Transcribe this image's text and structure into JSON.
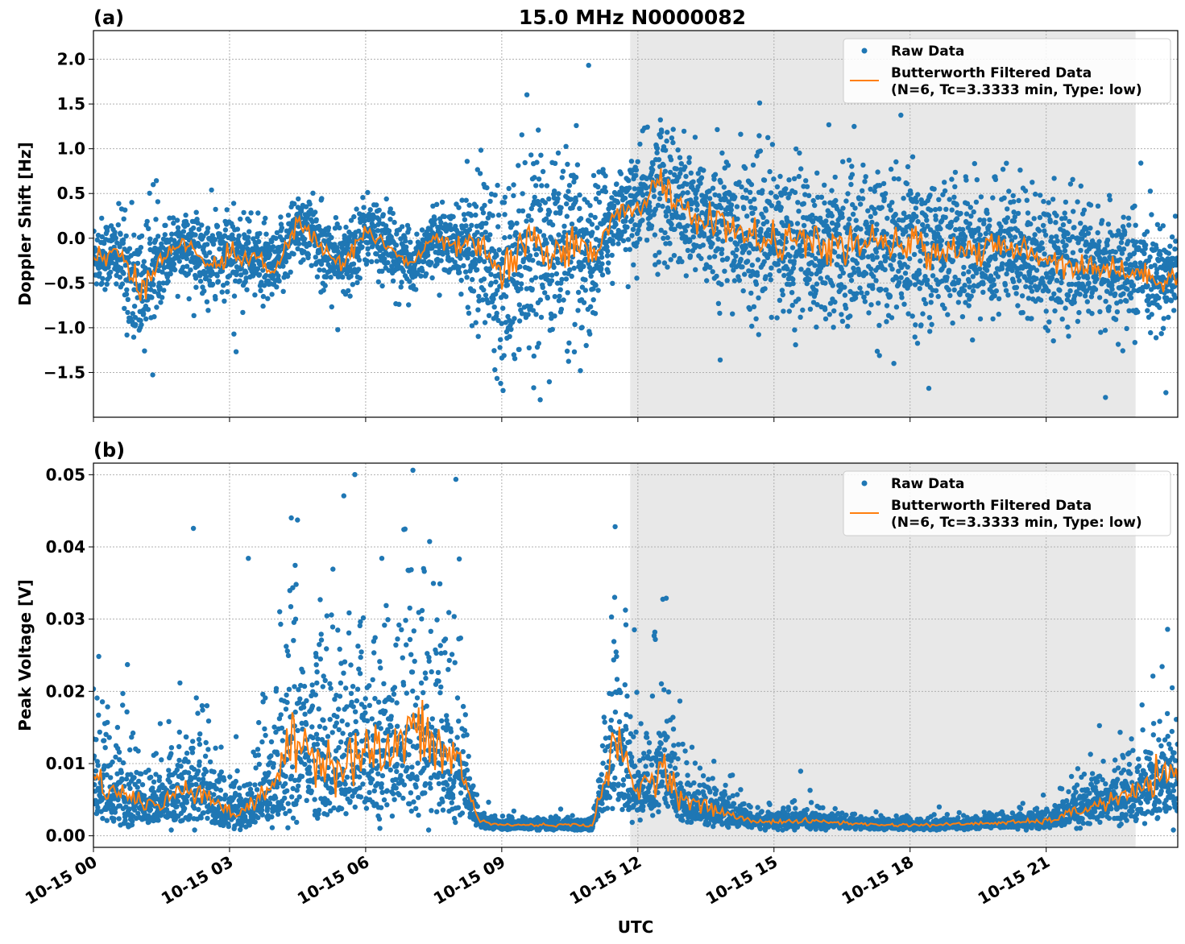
{
  "chart_data": {
    "type": "scatter",
    "title": "15.0 MHz N0000082",
    "xlabel": "UTC",
    "x_unit": "hours since 10-15 00:00",
    "xlim": [
      0,
      23.9
    ],
    "xticks": [
      0,
      3,
      6,
      9,
      12,
      15,
      18,
      21
    ],
    "xtick_labels": [
      "10-15 00",
      "10-15 03",
      "10-15 06",
      "10-15 09",
      "10-15 12",
      "10-15 15",
      "10-15 18",
      "10-15 21"
    ],
    "shaded_region_hours": [
      11.83,
      22.97
    ],
    "grid": true,
    "colors": {
      "raw": "#1f77b4",
      "filtered": "#ff7f0e",
      "shade": "#e8e8e8"
    },
    "legend": {
      "placement": "top-right",
      "raw_label": "Raw Data",
      "filtered_label_1": "Butterworth Filtered Data",
      "filtered_label_2": "(N=6, Tc=3.3333 min, Type: low)"
    },
    "panels": [
      {
        "panel_label": "(a)",
        "ylabel": "Doppler Shift [Hz]",
        "ylim": [
          -2.0,
          2.32
        ],
        "yticks": [
          -1.5,
          -1.0,
          -0.5,
          0.0,
          0.5,
          1.0,
          1.5,
          2.0
        ],
        "ytick_labels": [
          "−1.5",
          "−1.0",
          "−0.5",
          "0.0",
          "0.5",
          "1.0",
          "1.5",
          "2.0"
        ],
        "filtered_x_step_hours": 0.5,
        "filtered": [
          -0.2,
          -0.15,
          -0.6,
          -0.2,
          -0.05,
          -0.3,
          -0.2,
          -0.2,
          -0.4,
          0.2,
          -0.1,
          -0.3,
          0.1,
          -0.1,
          -0.3,
          0.0,
          -0.1,
          -0.1,
          -0.4,
          -0.1,
          -0.1,
          -0.1,
          -0.2,
          0.3,
          0.35,
          0.6,
          0.3,
          0.2,
          0.15,
          0.0,
          -0.05,
          0.0,
          -0.1,
          -0.1,
          -0.05,
          -0.1,
          -0.05,
          -0.15,
          -0.1,
          -0.15,
          -0.1,
          -0.15,
          -0.2,
          -0.3,
          -0.3,
          -0.35,
          -0.4,
          -0.45,
          -0.4
        ],
        "raw_spread": [
          0.2,
          0.2,
          0.4,
          0.2,
          0.15,
          0.25,
          0.25,
          0.2,
          0.2,
          0.2,
          0.2,
          0.2,
          0.2,
          0.2,
          0.15,
          0.15,
          0.2,
          0.4,
          0.5,
          0.5,
          0.5,
          0.5,
          0.45,
          0.2,
          0.25,
          0.4,
          0.35,
          0.35,
          0.4,
          0.4,
          0.4,
          0.4,
          0.4,
          0.4,
          0.4,
          0.4,
          0.4,
          0.4,
          0.35,
          0.35,
          0.35,
          0.35,
          0.35,
          0.3,
          0.3,
          0.3,
          0.25,
          0.25,
          0.25
        ]
      },
      {
        "panel_label": "(b)",
        "ylabel": "Peak Voltage [V]",
        "ylim": [
          -0.0016,
          0.0516
        ],
        "yticks": [
          0.0,
          0.01,
          0.02,
          0.03,
          0.04,
          0.05
        ],
        "ytick_labels": [
          "0.00",
          "0.01",
          "0.02",
          "0.03",
          "0.04",
          "0.05"
        ],
        "filtered_x_step_hours": 0.5,
        "filtered": [
          0.008,
          0.006,
          0.005,
          0.004,
          0.007,
          0.006,
          0.003,
          0.004,
          0.008,
          0.013,
          0.011,
          0.01,
          0.012,
          0.011,
          0.015,
          0.012,
          0.011,
          0.002,
          0.0015,
          0.0015,
          0.0015,
          0.0015,
          0.0015,
          0.013,
          0.006,
          0.01,
          0.005,
          0.004,
          0.003,
          0.002,
          0.002,
          0.002,
          0.002,
          0.0018,
          0.0016,
          0.0015,
          0.0015,
          0.0015,
          0.0016,
          0.0017,
          0.0018,
          0.0019,
          0.002,
          0.003,
          0.004,
          0.005,
          0.006,
          0.008,
          0.008
        ],
        "raw_spread": [
          0.5,
          0.5,
          0.5,
          0.5,
          0.5,
          0.5,
          0.5,
          0.5,
          0.6,
          0.6,
          0.6,
          0.6,
          0.6,
          0.6,
          0.6,
          0.6,
          0.6,
          0.3,
          0.25,
          0.25,
          0.25,
          0.25,
          0.3,
          0.5,
          0.5,
          0.5,
          0.45,
          0.4,
          0.35,
          0.3,
          0.3,
          0.3,
          0.3,
          0.25,
          0.25,
          0.25,
          0.25,
          0.25,
          0.25,
          0.25,
          0.25,
          0.3,
          0.35,
          0.4,
          0.4,
          0.4,
          0.4,
          0.45,
          0.45
        ]
      }
    ]
  }
}
